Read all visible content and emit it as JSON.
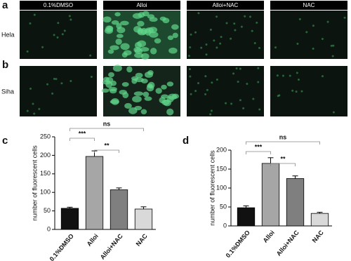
{
  "panels": [
    "a",
    "b",
    "c",
    "d"
  ],
  "images": {
    "columns": [
      "0.1%DMSO",
      "Alloi",
      "Alloi+NAC",
      "NAC"
    ],
    "rows": [
      "Hela",
      "Siha"
    ]
  },
  "chart_data": [
    {
      "type": "bar",
      "y_label": "number of fluorescent cells",
      "categories": [
        "0.1%DMSO",
        "Alloi",
        "Alloi+NAC",
        "NAC"
      ],
      "values": [
        57,
        197,
        107,
        55
      ],
      "errors": [
        3,
        15,
        5,
        6
      ],
      "colors": [
        "#111111",
        "#a6a6a6",
        "#7f7f7f",
        "#d9d9d9"
      ],
      "ylim": [
        0,
        250
      ],
      "yticks": [
        0,
        50,
        100,
        150,
        200,
        250
      ],
      "annotations": [
        {
          "text": "ns",
          "between": [
            "0.1%DMSO",
            "NAC"
          ]
        },
        {
          "text": "***",
          "between": [
            "0.1%DMSO",
            "Alloi"
          ]
        },
        {
          "text": "**",
          "between": [
            "Alloi",
            "Alloi+NAC"
          ]
        }
      ]
    },
    {
      "type": "bar",
      "y_label": "number of fluorescent cells",
      "categories": [
        "0.1%DMSO",
        "Alloi",
        "Alloi+NAC",
        "NAC"
      ],
      "values": [
        48,
        165,
        125,
        33
      ],
      "errors": [
        5,
        15,
        7,
        3
      ],
      "colors": [
        "#111111",
        "#a6a6a6",
        "#7f7f7f",
        "#d9d9d9"
      ],
      "ylim": [
        0,
        200
      ],
      "yticks": [
        0,
        50,
        100,
        150,
        200
      ],
      "annotations": [
        {
          "text": "ns",
          "between": [
            "0.1%DMSO",
            "NAC"
          ]
        },
        {
          "text": "***",
          "between": [
            "0.1%DMSO",
            "Alloi"
          ]
        },
        {
          "text": "**",
          "between": [
            "Alloi",
            "Alloi+NAC"
          ]
        }
      ]
    }
  ]
}
